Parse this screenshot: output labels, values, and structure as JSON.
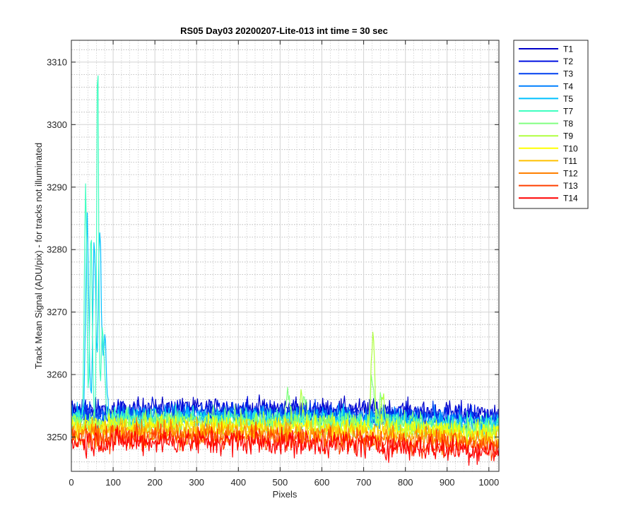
{
  "chart_data": {
    "type": "line",
    "title": "RS05 Day03 20200207-Lite-013 int time = 30 sec",
    "xlabel": "Pixels",
    "ylabel": "Track Mean Signal (ADU/pix) - for tracks not illuminated",
    "xlim": [
      0,
      1024
    ],
    "ylim": [
      3244.5,
      3313.5
    ],
    "xticks": [
      0,
      100,
      200,
      300,
      400,
      500,
      600,
      700,
      800,
      900,
      1000
    ],
    "yticks": [
      3250,
      3260,
      3270,
      3280,
      3290,
      3300,
      3310
    ],
    "grid": true,
    "minor_grid": true,
    "legend_position": "outside-top-right",
    "series": [
      {
        "name": "T1",
        "color": "#0000c8",
        "base": 3254.2,
        "drop": 0.6,
        "noise": 1.3,
        "peaks": []
      },
      {
        "name": "T2",
        "color": "#0010e0",
        "base": 3254.0,
        "drop": 0.8,
        "noise": 1.3,
        "peaks": []
      },
      {
        "name": "T3",
        "color": "#0040f0",
        "base": 3253.6,
        "drop": 0.9,
        "noise": 1.3,
        "peaks": []
      },
      {
        "name": "T4",
        "color": "#0080ff",
        "base": 3253.2,
        "drop": 1.0,
        "noise": 1.3,
        "peaks": []
      },
      {
        "name": "T5",
        "color": "#00c0ff",
        "base": 3253.0,
        "drop": 1.1,
        "noise": 1.3,
        "peaks": [
          {
            "x": 38,
            "h": 33,
            "w": 5
          },
          {
            "x": 55,
            "h": 29,
            "w": 5
          },
          {
            "x": 68,
            "h": 30,
            "w": 5
          },
          {
            "x": 80,
            "h": 12,
            "w": 6
          }
        ]
      },
      {
        "name": "T7",
        "color": "#40ffc0",
        "base": 3252.8,
        "drop": 1.2,
        "noise": 1.3,
        "peaks": [
          {
            "x": 34,
            "h": 38,
            "w": 4
          },
          {
            "x": 47,
            "h": 30,
            "w": 4
          },
          {
            "x": 63,
            "h": 60,
            "w": 3
          },
          {
            "x": 75,
            "h": 15,
            "w": 6
          }
        ]
      },
      {
        "name": "T8",
        "color": "#80ff80",
        "base": 3252.4,
        "drop": 1.2,
        "noise": 1.3,
        "peaks": [
          {
            "x": 520,
            "h": 5,
            "w": 6
          },
          {
            "x": 560,
            "h": 4,
            "w": 6
          },
          {
            "x": 720,
            "h": 8,
            "w": 6
          },
          {
            "x": 740,
            "h": 5,
            "w": 6
          }
        ]
      },
      {
        "name": "T9",
        "color": "#b0ff40",
        "base": 3252.0,
        "drop": 1.2,
        "noise": 1.3,
        "peaks": [
          {
            "x": 722,
            "h": 15,
            "w": 6
          },
          {
            "x": 745,
            "h": 6,
            "w": 6
          },
          {
            "x": 550,
            "h": 4,
            "w": 6
          }
        ]
      },
      {
        "name": "T10",
        "color": "#ffff00",
        "base": 3251.6,
        "drop": 1.2,
        "noise": 1.3,
        "peaks": []
      },
      {
        "name": "T11",
        "color": "#ffc000",
        "base": 3251.0,
        "drop": 1.3,
        "noise": 1.3,
        "peaks": []
      },
      {
        "name": "T12",
        "color": "#ff8000",
        "base": 3250.4,
        "drop": 1.4,
        "noise": 1.4,
        "peaks": []
      },
      {
        "name": "T13",
        "color": "#ff4000",
        "base": 3249.8,
        "drop": 1.5,
        "noise": 1.4,
        "peaks": []
      },
      {
        "name": "T14",
        "color": "#ff0000",
        "base": 3249.2,
        "drop": 1.5,
        "noise": 1.5,
        "peaks": []
      }
    ]
  }
}
